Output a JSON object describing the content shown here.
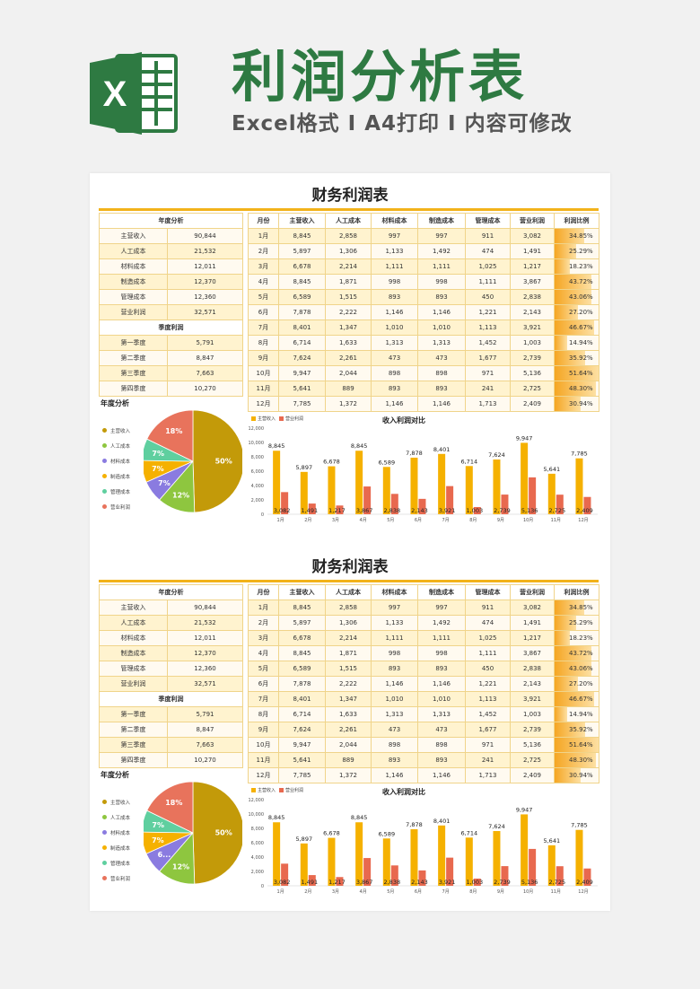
{
  "header": {
    "title": "利润分析表",
    "subtitle": "Excel格式 I A4打印 I 内容可修改",
    "logo_letter": "X"
  },
  "colors": {
    "brand_green": "#2e7a42",
    "accent_gold": "#f2b21a",
    "income_bar": "#f5b100",
    "profit_bar": "#e8694f"
  },
  "sheet": {
    "title": "财务利润表",
    "annual_header": "年度分析",
    "annual_items": [
      {
        "label": "主营收入",
        "value": "90,844"
      },
      {
        "label": "人工成本",
        "value": "21,532"
      },
      {
        "label": "材料成本",
        "value": "12,011"
      },
      {
        "label": "制造成本",
        "value": "12,370"
      },
      {
        "label": "管理成本",
        "value": "12,360"
      },
      {
        "label": "营业利润",
        "value": "32,571"
      }
    ],
    "quarter_header": "季度利润",
    "quarter_items": [
      {
        "label": "第一季度",
        "value": "5,791"
      },
      {
        "label": "第二季度",
        "value": "8,847"
      },
      {
        "label": "第三季度",
        "value": "7,663"
      },
      {
        "label": "第四季度",
        "value": "10,270"
      }
    ],
    "monthly_headers": [
      "月份",
      "主营收入",
      "人工成本",
      "材料成本",
      "制造成本",
      "管理成本",
      "营业利润",
      "利润比例"
    ],
    "monthly_rows": [
      [
        "1月",
        "8,845",
        "2,858",
        "997",
        "997",
        "911",
        "3,082",
        "34.85%"
      ],
      [
        "2月",
        "5,897",
        "1,306",
        "1,133",
        "1,492",
        "474",
        "1,491",
        "25.29%"
      ],
      [
        "3月",
        "6,678",
        "2,214",
        "1,111",
        "1,111",
        "1,025",
        "1,217",
        "18.23%"
      ],
      [
        "4月",
        "8,845",
        "1,871",
        "998",
        "998",
        "1,111",
        "3,867",
        "43.72%"
      ],
      [
        "5月",
        "6,589",
        "1,515",
        "893",
        "893",
        "450",
        "2,838",
        "43.06%"
      ],
      [
        "6月",
        "7,878",
        "2,222",
        "1,146",
        "1,146",
        "1,221",
        "2,143",
        "27.20%"
      ],
      [
        "7月",
        "8,401",
        "1,347",
        "1,010",
        "1,010",
        "1,113",
        "3,921",
        "46.67%"
      ],
      [
        "8月",
        "6,714",
        "1,633",
        "1,313",
        "1,313",
        "1,452",
        "1,003",
        "14.94%"
      ],
      [
        "9月",
        "7,624",
        "2,261",
        "473",
        "473",
        "1,677",
        "2,739",
        "35.92%"
      ],
      [
        "10月",
        "9,947",
        "2,044",
        "898",
        "898",
        "971",
        "5,136",
        "51.64%"
      ],
      [
        "11月",
        "5,641",
        "889",
        "893",
        "893",
        "241",
        "2,725",
        "48.30%"
      ],
      [
        "12月",
        "7,785",
        "1,372",
        "1,146",
        "1,146",
        "1,713",
        "2,409",
        "30.94%"
      ]
    ],
    "ratio_fractions": [
      0.3485,
      0.2529,
      0.1823,
      0.4372,
      0.4306,
      0.272,
      0.4667,
      0.1494,
      0.3592,
      0.5164,
      0.483,
      0.3094
    ],
    "section2_rows_override": {
      "11": [
        "11月",
        "5,641",
        "889",
        "893",
        "893",
        "241",
        "2,725",
        "48.30%"
      ]
    }
  },
  "pie_chart": {
    "title": "年度分析",
    "legend": [
      "主营收入",
      "人工成本",
      "材料成本",
      "制造成本",
      "管理成本",
      "营业利润"
    ],
    "colors": [
      "#c39a09",
      "#8ec63f",
      "#8a7be0",
      "#f5b100",
      "#5fcf9f",
      "#e8735c"
    ],
    "values": [
      50,
      12,
      7,
      7,
      7,
      18
    ],
    "labels_top": [
      "50%",
      "12%",
      "7%",
      "7%",
      "7%",
      "18%"
    ],
    "labels_bottom": [
      "50%",
      "12%",
      "6...",
      "7%",
      "7%",
      "18%"
    ]
  },
  "chart_data": [
    {
      "type": "bar",
      "title": "收入利润对比",
      "categories": [
        "1月",
        "2月",
        "3月",
        "4月",
        "5月",
        "6月",
        "7月",
        "8月",
        "9月",
        "10月",
        "11月",
        "12月"
      ],
      "series": [
        {
          "name": "主营收入",
          "values": [
            8845,
            5897,
            6678,
            8845,
            6589,
            7878,
            8401,
            6714,
            7624,
            9947,
            5641,
            7785
          ]
        },
        {
          "name": "营业利润",
          "values": [
            3082,
            1491,
            1217,
            3867,
            2838,
            2143,
            3921,
            1003,
            2739,
            5136,
            2725,
            2409
          ]
        }
      ],
      "y_ticks": [
        "0",
        "2,000",
        "4,000",
        "6,000",
        "8,000",
        "10,000",
        "12,000"
      ],
      "ylim": [
        0,
        12000
      ],
      "labels_income": [
        "8,845",
        "5,897",
        "6,678",
        "8,845",
        "6,589",
        "7,878",
        "8,401",
        "6,714",
        "7,624",
        "9,947",
        "5,641",
        "7,785"
      ],
      "labels_profit": [
        "3,082",
        "1,491",
        "1,217",
        "3,867",
        "2,838",
        "2,143",
        "3,921",
        "1,003",
        "2,739",
        "5,136",
        "2,725",
        "2,409"
      ]
    },
    {
      "type": "pie",
      "title": "年度分析",
      "categories": [
        "主营收入",
        "人工成本",
        "材料成本",
        "制造成本",
        "管理成本",
        "营业利润"
      ],
      "values": [
        50,
        12,
        7,
        7,
        7,
        18
      ]
    }
  ]
}
